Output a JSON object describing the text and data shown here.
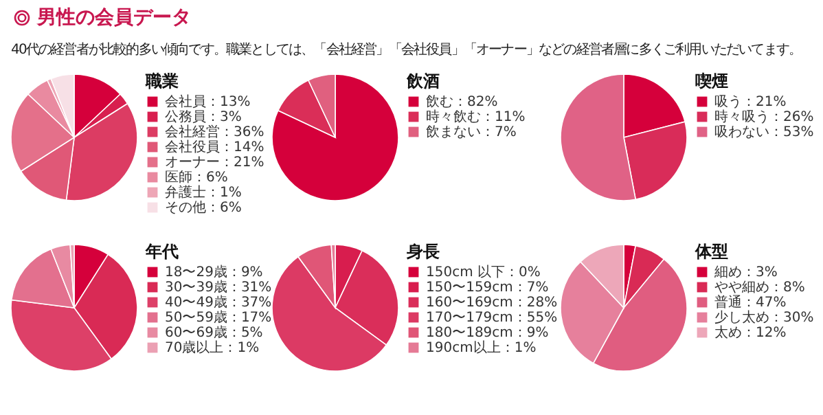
{
  "chart_data": [
    {
      "type": "pie",
      "title": "男性の会員データ",
      "subtitle": "40代の経営者が比較的多い傾向です。職業としては、「会社経営」「会社役員」「オーナー」などの経営者層に多くご利用いただいてます。",
      "legend_title": "職業",
      "legend": "right",
      "categories": [
        "会社員：13%",
        "公務員：3%",
        "会社経営：36%",
        "会社役員：14%",
        "オーナー：21%",
        "医師：6%",
        "弁護士：1%",
        "その他：6%"
      ],
      "values": [
        13,
        3,
        36,
        14,
        21,
        6,
        1,
        6
      ],
      "colors": [
        "#d5003b",
        "#d81f4f",
        "#dc3c63",
        "#e05877",
        "#e4708a",
        "#e98aa0",
        "#eea6b6",
        "#f7e0e6"
      ]
    },
    {
      "type": "pie",
      "legend_title": "飲酒",
      "legend": "right",
      "categories": [
        "飲む：82%",
        "時々飲む：11%",
        "飲まない：7%"
      ],
      "values": [
        82,
        11,
        7
      ],
      "colors": [
        "#d5003b",
        "#da2e58",
        "#e0607f"
      ]
    },
    {
      "type": "pie",
      "legend_title": "喫煙",
      "legend": "right",
      "categories": [
        "吸う：21%",
        "時々吸う：26%",
        "吸わない：53%"
      ],
      "values": [
        21,
        26,
        53
      ],
      "colors": [
        "#d5003b",
        "#d92c59",
        "#e06286"
      ]
    },
    {
      "type": "pie",
      "legend_title": "年代",
      "legend": "right",
      "categories": [
        "18〜29歳：9%",
        "30〜39歳：31%",
        "40〜49歳：37%",
        "50〜59歳：17%",
        "60〜69歳：5%",
        "70歳以上：1%"
      ],
      "values": [
        9,
        31,
        37,
        17,
        5,
        1
      ],
      "colors": [
        "#d5003b",
        "#d92a55",
        "#dd4068",
        "#e3708e",
        "#e88aa2",
        "#eba0b3"
      ]
    },
    {
      "type": "pie",
      "legend_title": "身長",
      "legend": "right",
      "categories": [
        "150cm 以下：0%",
        "150〜159cm：7%",
        "160〜169cm：28%",
        "170〜179cm：55%",
        "180〜189cm：9%",
        "190cm以上：1%"
      ],
      "values": [
        0,
        7,
        28,
        55,
        9,
        1
      ],
      "colors": [
        "#d5003b",
        "#d81d4e",
        "#da2e5a",
        "#dc3a64",
        "#e05677",
        "#e57a95"
      ]
    },
    {
      "type": "pie",
      "legend_title": "体型",
      "legend": "right",
      "categories": [
        "細め：3%",
        "やや細め：8%",
        "普通：47%",
        "少し太め：30%",
        "太め：12%"
      ],
      "values": [
        3,
        8,
        47,
        30,
        12
      ],
      "colors": [
        "#d5003b",
        "#d92a55",
        "#e05d80",
        "#e6809c",
        "#eda7b9"
      ]
    }
  ]
}
